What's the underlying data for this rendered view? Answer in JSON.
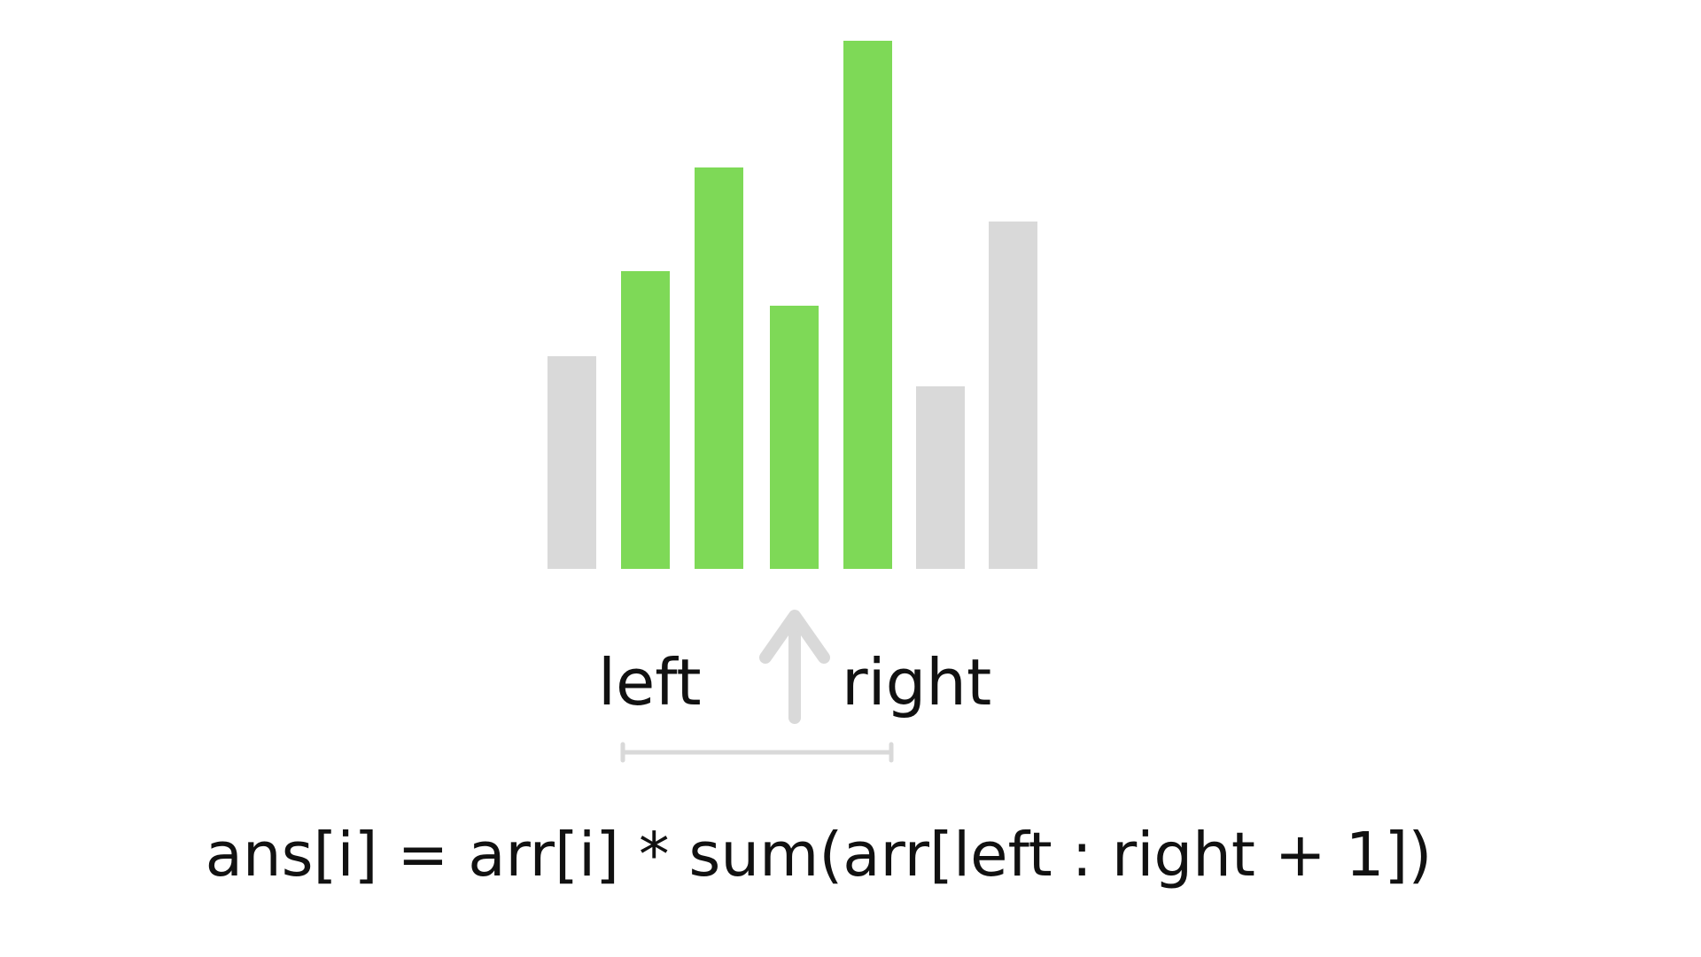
{
  "bars": {
    "values": [
      240,
      336,
      453,
      297,
      596,
      206,
      392
    ],
    "highlighted": [
      false,
      true,
      true,
      true,
      true,
      false,
      false
    ]
  },
  "labels": {
    "left": "left",
    "right": "right"
  },
  "pointer": {
    "icon": "arrow-up-icon",
    "index": 3
  },
  "range": {
    "start_index": 1,
    "end_index": 4
  },
  "formula": "ans[i] = arr[i] * sum(arr[left : right + 1])",
  "colors": {
    "highlight": "#7ed957",
    "muted": "#d9d9d9",
    "text": "#111111",
    "background": "#ffffff"
  }
}
